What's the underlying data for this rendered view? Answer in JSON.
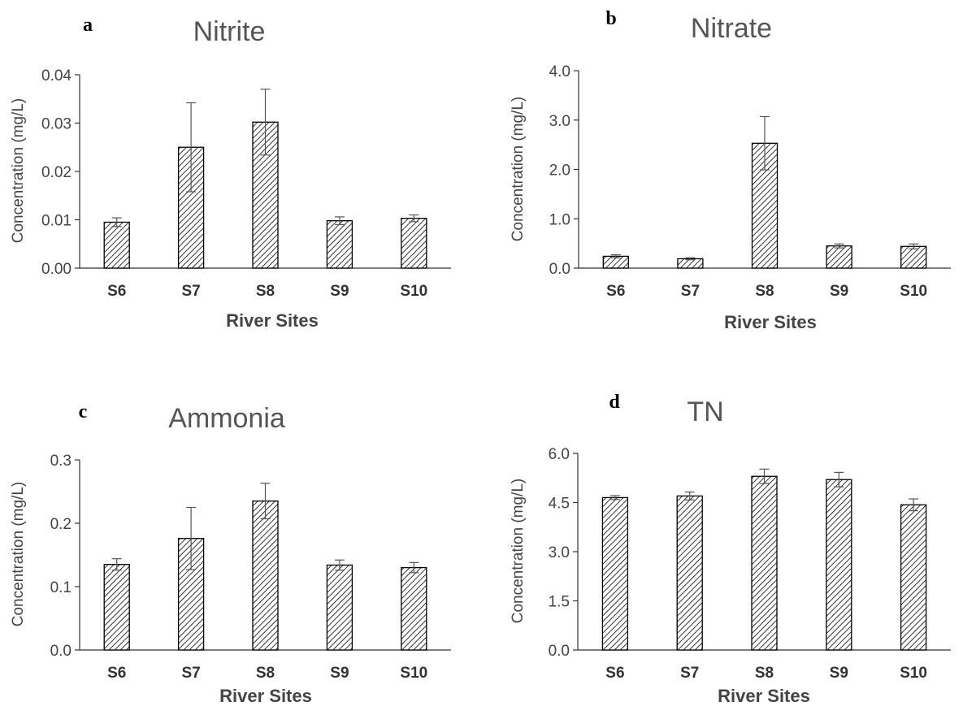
{
  "chart_data": [
    {
      "type": "bar",
      "panel": "a",
      "title": "Nitrite",
      "xlabel": "River Sites",
      "ylabel": "Concentration (mg/L)",
      "categories": [
        "S6",
        "S7",
        "S8",
        "S9",
        "S10"
      ],
      "values": [
        0.0095,
        0.025,
        0.0302,
        0.0098,
        0.0103
      ],
      "errors": [
        0.0009,
        0.0092,
        0.0068,
        0.0008,
        0.0007
      ],
      "ylim": [
        0,
        0.04
      ],
      "yticks": [
        "0.00",
        "0.01",
        "0.02",
        "0.03",
        "0.04"
      ],
      "ytick_values": [
        0,
        0.01,
        0.02,
        0.03,
        0.04
      ],
      "bar_fill": "diagonal-hatch",
      "grid": false
    },
    {
      "type": "bar",
      "panel": "b",
      "title": "Nitrate",
      "xlabel": "River Sites",
      "ylabel": "Concentration (mg/L)",
      "categories": [
        "S6",
        "S7",
        "S8",
        "S9",
        "S10"
      ],
      "values": [
        0.24,
        0.19,
        2.53,
        0.45,
        0.44
      ],
      "errors": [
        0.03,
        0.02,
        0.54,
        0.04,
        0.05
      ],
      "ylim": [
        0,
        4.0
      ],
      "yticks": [
        "0.0",
        "1.0",
        "2.0",
        "3.0",
        "4.0"
      ],
      "ytick_values": [
        0,
        1,
        2,
        3,
        4
      ],
      "bar_fill": "diagonal-hatch",
      "grid": false
    },
    {
      "type": "bar",
      "panel": "c",
      "title": "Ammonia",
      "xlabel": "River Sites",
      "ylabel": "Concentration (mg/L)",
      "categories": [
        "S6",
        "S7",
        "S8",
        "S9",
        "S10"
      ],
      "values": [
        0.135,
        0.176,
        0.235,
        0.134,
        0.13
      ],
      "errors": [
        0.009,
        0.049,
        0.028,
        0.008,
        0.008
      ],
      "ylim": [
        0,
        0.3
      ],
      "yticks": [
        "0.0",
        "0.1",
        "0.2",
        "0.3"
      ],
      "ytick_values": [
        0,
        0.1,
        0.2,
        0.3
      ],
      "bar_fill": "diagonal-hatch",
      "grid": false
    },
    {
      "type": "bar",
      "panel": "d",
      "title": "TN",
      "xlabel": "River Sites",
      "ylabel": "Concentration (mg/L)",
      "categories": [
        "S6",
        "S7",
        "S8",
        "S9",
        "S10"
      ],
      "values": [
        4.65,
        4.7,
        5.3,
        5.2,
        4.43
      ],
      "errors": [
        0.06,
        0.12,
        0.22,
        0.22,
        0.18
      ],
      "ylim": [
        0,
        6.0
      ],
      "yticks": [
        "0.0",
        "1.5",
        "3.0",
        "4.5",
        "6.0"
      ],
      "ytick_values": [
        0,
        1.5,
        3,
        4.5,
        6
      ],
      "bar_fill": "diagonal-hatch",
      "grid": false
    }
  ]
}
